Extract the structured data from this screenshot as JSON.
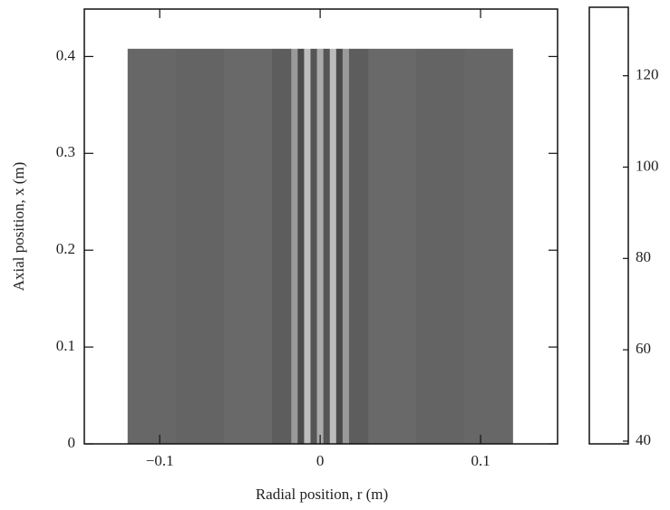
{
  "chart_data": {
    "type": "heatmap",
    "xlabel": "Radial position, r (m)",
    "ylabel": "Axial position, x (m)",
    "xlim": [
      -0.147,
      0.148
    ],
    "ylim": [
      0,
      0.449
    ],
    "xticks": [
      {
        "value": -0.1,
        "label": "−0.1"
      },
      0,
      0.1
    ],
    "yticks": [
      0,
      0.1,
      0.2,
      0.3,
      0.4
    ],
    "field_xrange": [
      0,
      0.408
    ],
    "r_edges": [
      -0.12,
      -0.09,
      -0.06,
      -0.03,
      -0.018,
      -0.014,
      -0.01,
      -0.006,
      -0.002,
      0.002,
      0.006,
      0.01,
      0.014,
      0.018,
      0.03,
      0.06,
      0.09,
      0.12
    ],
    "values": [
      122,
      124,
      121,
      115,
      70,
      110,
      55,
      100,
      60,
      100,
      55,
      110,
      70,
      115,
      121,
      124,
      122
    ],
    "clim": [
      39.4,
      135
    ],
    "cticks": [
      40,
      60,
      80,
      100,
      120
    ],
    "colormap": [
      {
        "value": 39.4,
        "color": "#3a3a3a"
      },
      {
        "value": 45,
        "color": "#555555"
      },
      {
        "value": 52,
        "color": "#c8c8c8"
      },
      {
        "value": 60,
        "color": "#aaaaaa"
      },
      {
        "value": 70,
        "color": "#9a9a9a"
      },
      {
        "value": 80,
        "color": "#8a8a8a"
      },
      {
        "value": 90,
        "color": "#9c9c9c"
      },
      {
        "value": 100,
        "color": "#555555"
      },
      {
        "value": 105,
        "color": "#333333"
      },
      {
        "value": 112,
        "color": "#555555"
      },
      {
        "value": 120,
        "color": "#6a6a6a"
      },
      {
        "value": 135,
        "color": "#555555"
      }
    ]
  }
}
